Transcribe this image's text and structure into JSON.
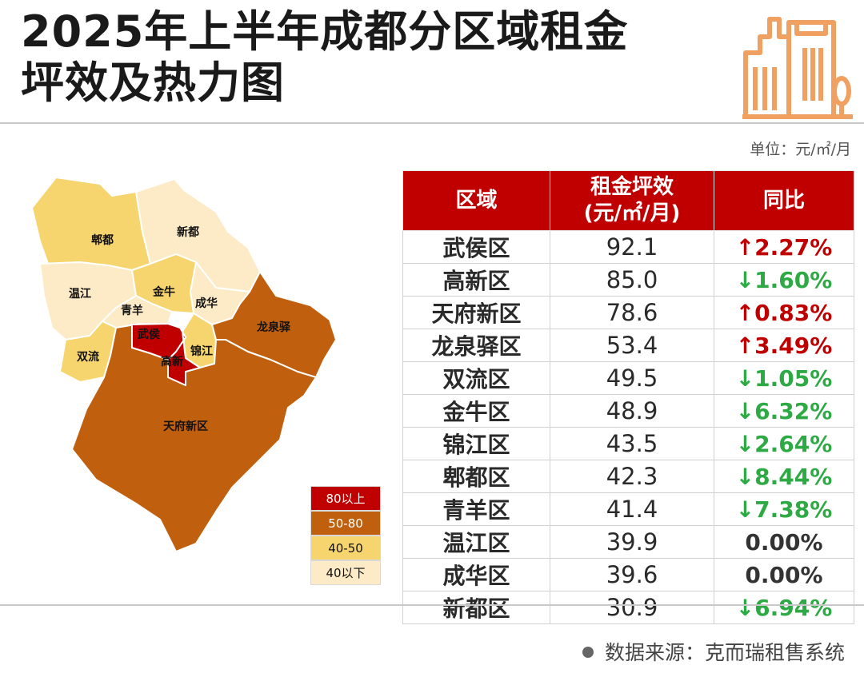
{
  "header": {
    "title_line1": "2025年上半年成都分区域租金",
    "title_line2": "坪效及热力图",
    "unit": "单位：元/㎡/月"
  },
  "legend": [
    {
      "label": "80以上",
      "color": "#c00000"
    },
    {
      "label": "50-80",
      "color": "#c0600e"
    },
    {
      "label": "40-50",
      "color": "#f6d56f"
    },
    {
      "label": "40以下",
      "color": "#fcebc6"
    }
  ],
  "map": {
    "labels": [
      "郫都",
      "新都",
      "温江",
      "金牛",
      "青羊",
      "成华",
      "龙泉驿",
      "武侯",
      "锦江",
      "双流",
      "高新",
      "天府新区"
    ]
  },
  "table": {
    "headers": [
      "区域",
      "租金坪效",
      "(元/㎡/月)",
      "同比"
    ]
  },
  "chart_data": {
    "type": "table",
    "title": "2025年上半年成都分区域租金坪效及热力图",
    "unit": "元/㎡/月",
    "columns": [
      "区域",
      "租金坪效(元/㎡/月)",
      "同比"
    ],
    "rows": [
      {
        "district": "武侯区",
        "rent": "92.1",
        "yoy": "↑2.27%",
        "trend": "up"
      },
      {
        "district": "高新区",
        "rent": "85.0",
        "yoy": "↓1.60%",
        "trend": "down"
      },
      {
        "district": "天府新区",
        "rent": "78.6",
        "yoy": "↑0.83%",
        "trend": "up"
      },
      {
        "district": "龙泉驿区",
        "rent": "53.4",
        "yoy": "↑3.49%",
        "trend": "up"
      },
      {
        "district": "双流区",
        "rent": "49.5",
        "yoy": "↓1.05%",
        "trend": "down"
      },
      {
        "district": "金牛区",
        "rent": "48.9",
        "yoy": "↓6.32%",
        "trend": "down"
      },
      {
        "district": "锦江区",
        "rent": "43.5",
        "yoy": "↓2.64%",
        "trend": "down"
      },
      {
        "district": "郫都区",
        "rent": "42.3",
        "yoy": "↓8.44%",
        "trend": "down"
      },
      {
        "district": "青羊区",
        "rent": "41.4",
        "yoy": "↓7.38%",
        "trend": "down"
      },
      {
        "district": "温江区",
        "rent": "39.9",
        "yoy": "0.00%",
        "trend": "flat"
      },
      {
        "district": "成华区",
        "rent": "39.6",
        "yoy": "0.00%",
        "trend": "flat"
      },
      {
        "district": "新都区",
        "rent": "30.9",
        "yoy": "↓6.94%",
        "trend": "down"
      }
    ]
  },
  "footer": {
    "source": "数据来源：克而瑞租售系统"
  },
  "colors": {
    "accent": "#c00000",
    "up": "#c00000",
    "down": "#2eaa44",
    "icon": "#f0a060"
  }
}
